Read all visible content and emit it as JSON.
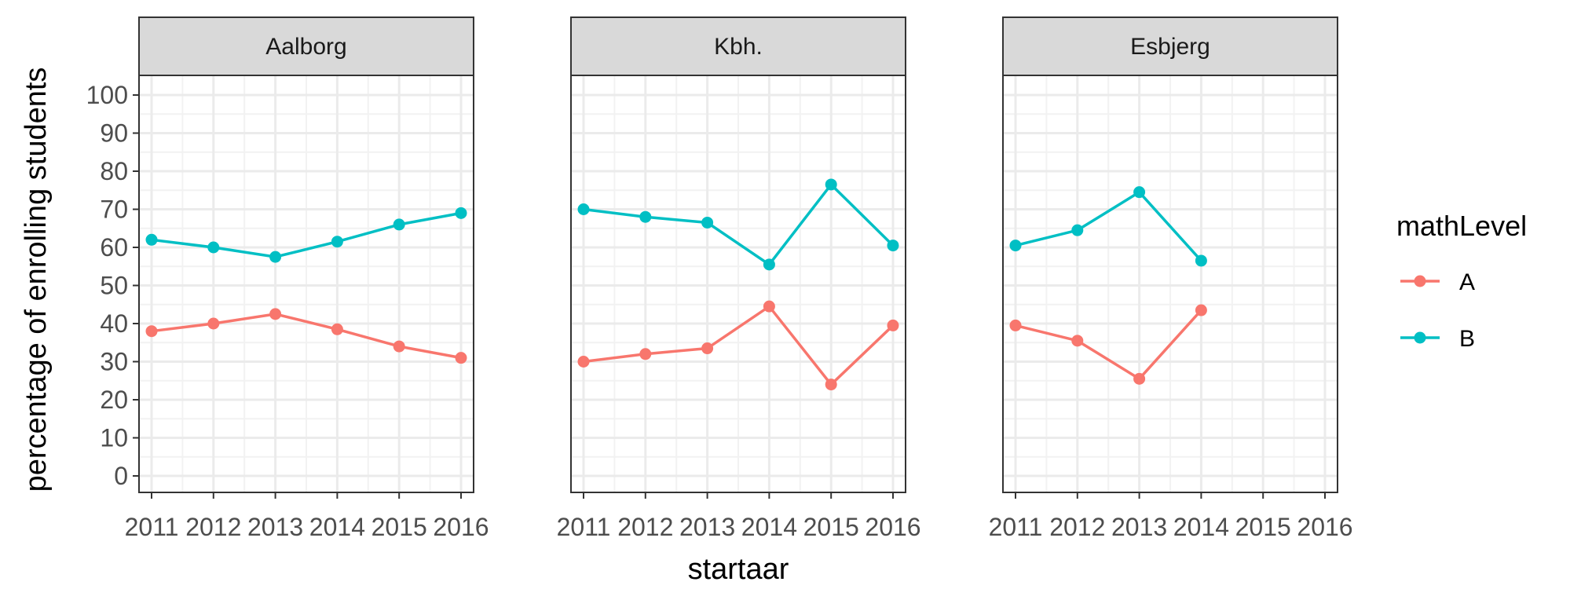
{
  "chart_data": {
    "type": "line",
    "xlabel": "startaar",
    "ylabel": "percentage of enrolling students",
    "x": [
      2011,
      2012,
      2013,
      2014,
      2015,
      2016
    ],
    "xlim": [
      2011,
      2016
    ],
    "ylim": [
      0,
      100
    ],
    "y_ticks": [
      0,
      10,
      20,
      30,
      40,
      50,
      60,
      70,
      80,
      90,
      100
    ],
    "grid": true,
    "legend": {
      "title": "mathLevel",
      "placement": "right",
      "entries": [
        {
          "label": "A",
          "color": "#F8766D"
        },
        {
          "label": "B",
          "color": "#00BFC4"
        }
      ]
    },
    "panels": [
      {
        "title": "Aalborg",
        "series": [
          {
            "name": "A",
            "color": "#F8766D",
            "values": [
              38,
              40,
              42.5,
              38.5,
              34,
              31
            ]
          },
          {
            "name": "B",
            "color": "#00BFC4",
            "values": [
              62,
              60,
              57.5,
              61.5,
              66,
              69
            ]
          }
        ]
      },
      {
        "title": "Kbh.",
        "series": [
          {
            "name": "A",
            "color": "#F8766D",
            "values": [
              30,
              32,
              33.5,
              44.5,
              24,
              39.5
            ]
          },
          {
            "name": "B",
            "color": "#00BFC4",
            "values": [
              70,
              68,
              66.5,
              55.5,
              76.5,
              60.5
            ]
          }
        ]
      },
      {
        "title": "Esbjerg",
        "series": [
          {
            "name": "A",
            "color": "#F8766D",
            "values": [
              39.5,
              35.5,
              25.5,
              43.5,
              null,
              null
            ]
          },
          {
            "name": "B",
            "color": "#00BFC4",
            "values": [
              60.5,
              64.5,
              74.5,
              56.5,
              null,
              null
            ]
          }
        ]
      }
    ]
  }
}
